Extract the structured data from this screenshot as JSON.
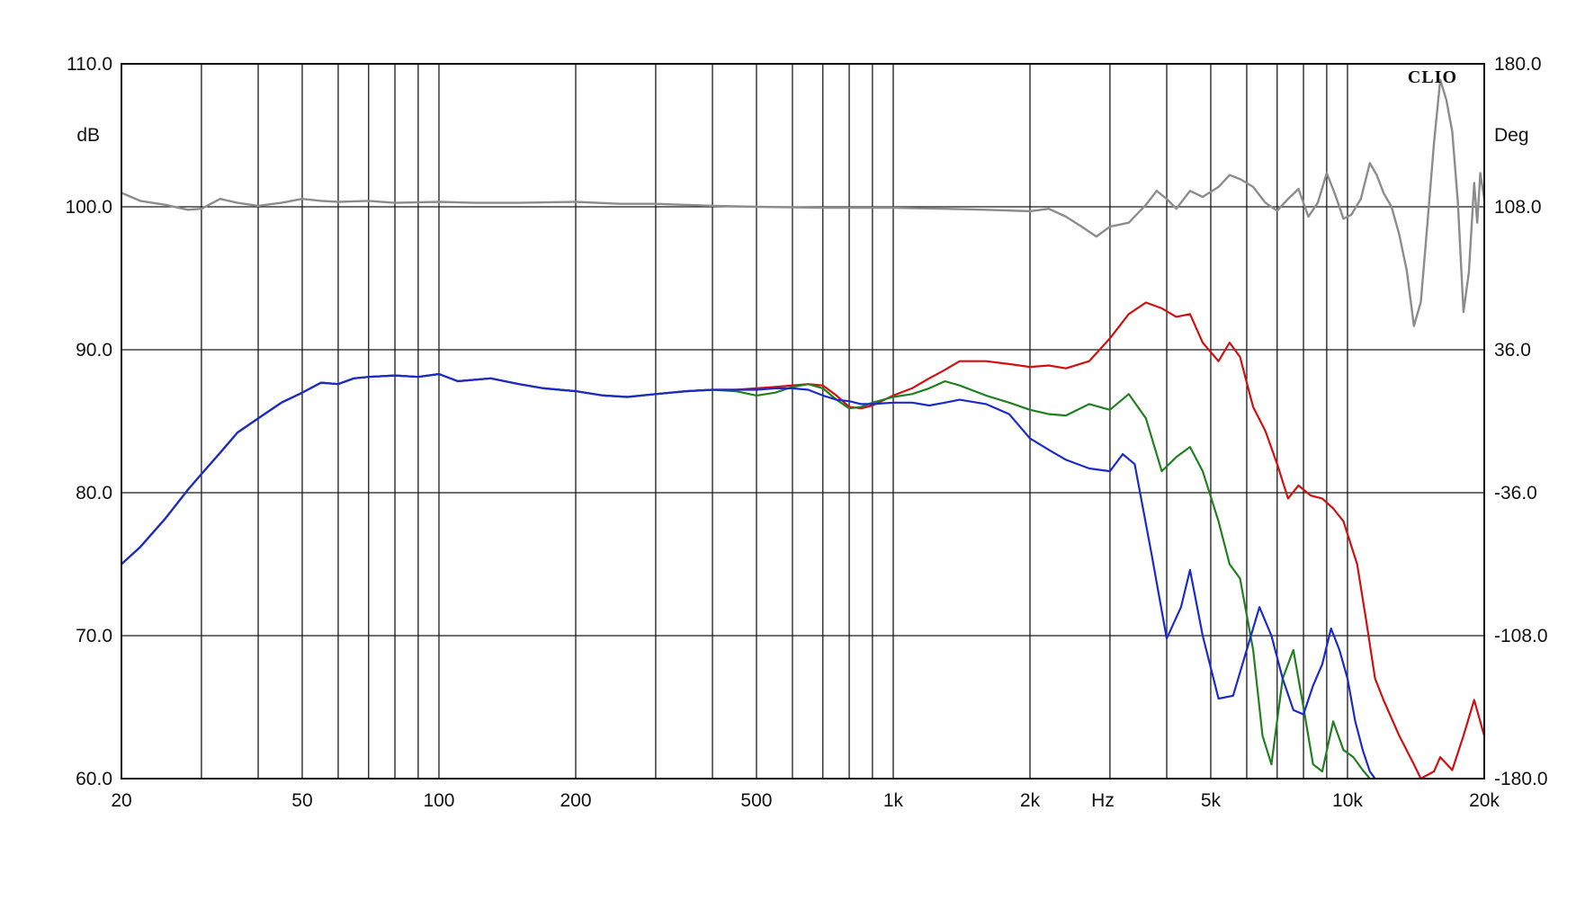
{
  "chart_data": {
    "type": "line",
    "brand": "CLIO",
    "xlabel": "Hz",
    "ylabel_left": "dB",
    "ylabel_right": "Deg",
    "x_scale": "log",
    "xlim": [
      20,
      20000
    ],
    "ylim_left": [
      60,
      110
    ],
    "ylim_right": [
      -180,
      180
    ],
    "grid": true,
    "x_ticks": [
      {
        "value": 20,
        "label": "20"
      },
      {
        "value": 50,
        "label": "50"
      },
      {
        "value": 100,
        "label": "100"
      },
      {
        "value": 200,
        "label": "200"
      },
      {
        "value": 500,
        "label": "500"
      },
      {
        "value": 1000,
        "label": "1k"
      },
      {
        "value": 2000,
        "label": "2k"
      },
      {
        "value": 5000,
        "label": "5k"
      },
      {
        "value": 10000,
        "label": "10k"
      },
      {
        "value": 20000,
        "label": "20k"
      }
    ],
    "y_ticks_left": [
      "110.0",
      "100.0",
      "90.0",
      "80.0",
      "70.0",
      "60.0"
    ],
    "y_ticks_right": [
      "180.0",
      "108.0",
      "36.0",
      "-36.0",
      "-108.0",
      "-180.0"
    ],
    "series": [
      {
        "color": "#d01010",
        "axis": "left",
        "points": [
          [
            20,
            75
          ],
          [
            22,
            76.2
          ],
          [
            25,
            78.2
          ],
          [
            28,
            80.2
          ],
          [
            30,
            81.3
          ],
          [
            33,
            82.8
          ],
          [
            36,
            84.2
          ],
          [
            40,
            85.2
          ],
          [
            45,
            86.3
          ],
          [
            50,
            87
          ],
          [
            55,
            87.7
          ],
          [
            60,
            87.6
          ],
          [
            65,
            88
          ],
          [
            70,
            88.1
          ],
          [
            80,
            88.2
          ],
          [
            90,
            88.1
          ],
          [
            100,
            88.3
          ],
          [
            110,
            87.8
          ],
          [
            130,
            88
          ],
          [
            150,
            87.6
          ],
          [
            170,
            87.3
          ],
          [
            200,
            87.1
          ],
          [
            230,
            86.8
          ],
          [
            260,
            86.7
          ],
          [
            300,
            86.9
          ],
          [
            350,
            87.1
          ],
          [
            400,
            87.2
          ],
          [
            450,
            87.2
          ],
          [
            500,
            87.3
          ],
          [
            550,
            87.4
          ],
          [
            600,
            87.5
          ],
          [
            650,
            87.6
          ],
          [
            700,
            87.5
          ],
          [
            750,
            86.8
          ],
          [
            800,
            86
          ],
          [
            850,
            85.9
          ],
          [
            900,
            86.1
          ],
          [
            1000,
            86.8
          ],
          [
            1100,
            87.3
          ],
          [
            1200,
            88
          ],
          [
            1300,
            88.6
          ],
          [
            1400,
            89.2
          ],
          [
            1600,
            89.2
          ],
          [
            1800,
            89
          ],
          [
            2000,
            88.8
          ],
          [
            2200,
            88.9
          ],
          [
            2400,
            88.7
          ],
          [
            2700,
            89.2
          ],
          [
            3000,
            90.8
          ],
          [
            3300,
            92.5
          ],
          [
            3600,
            93.3
          ],
          [
            3900,
            92.9
          ],
          [
            4200,
            92.3
          ],
          [
            4500,
            92.5
          ],
          [
            4800,
            90.5
          ],
          [
            5200,
            89.2
          ],
          [
            5500,
            90.5
          ],
          [
            5800,
            89.5
          ],
          [
            6200,
            86
          ],
          [
            6600,
            84.3
          ],
          [
            7000,
            82
          ],
          [
            7400,
            79.6
          ],
          [
            7800,
            80.5
          ],
          [
            8300,
            79.8
          ],
          [
            8800,
            79.6
          ],
          [
            9300,
            78.9
          ],
          [
            9800,
            78
          ],
          [
            10500,
            75
          ],
          [
            11000,
            71
          ],
          [
            11500,
            67
          ],
          [
            12000,
            65.5
          ],
          [
            13000,
            63
          ],
          [
            14000,
            61
          ],
          [
            14500,
            60
          ],
          [
            15500,
            60.5
          ],
          [
            16000,
            61.5
          ],
          [
            17000,
            60.6
          ],
          [
            18000,
            63
          ],
          [
            19000,
            65.5
          ],
          [
            20000,
            63
          ]
        ]
      },
      {
        "color": "#208020",
        "axis": "left",
        "points": [
          [
            20,
            75
          ],
          [
            22,
            76.2
          ],
          [
            25,
            78.2
          ],
          [
            28,
            80.2
          ],
          [
            30,
            81.3
          ],
          [
            33,
            82.8
          ],
          [
            36,
            84.2
          ],
          [
            40,
            85.2
          ],
          [
            45,
            86.3
          ],
          [
            50,
            87
          ],
          [
            55,
            87.7
          ],
          [
            60,
            87.6
          ],
          [
            65,
            88
          ],
          [
            70,
            88.1
          ],
          [
            80,
            88.2
          ],
          [
            90,
            88.1
          ],
          [
            100,
            88.3
          ],
          [
            110,
            87.8
          ],
          [
            130,
            88
          ],
          [
            150,
            87.6
          ],
          [
            170,
            87.3
          ],
          [
            200,
            87.1
          ],
          [
            230,
            86.8
          ],
          [
            260,
            86.7
          ],
          [
            300,
            86.9
          ],
          [
            350,
            87.1
          ],
          [
            400,
            87.2
          ],
          [
            450,
            87.1
          ],
          [
            500,
            86.8
          ],
          [
            550,
            87
          ],
          [
            600,
            87.4
          ],
          [
            650,
            87.6
          ],
          [
            700,
            87.3
          ],
          [
            750,
            86.5
          ],
          [
            800,
            85.9
          ],
          [
            850,
            86
          ],
          [
            900,
            86.3
          ],
          [
            1000,
            86.7
          ],
          [
            1100,
            86.9
          ],
          [
            1200,
            87.3
          ],
          [
            1300,
            87.8
          ],
          [
            1400,
            87.5
          ],
          [
            1600,
            86.8
          ],
          [
            1800,
            86.3
          ],
          [
            2000,
            85.8
          ],
          [
            2200,
            85.5
          ],
          [
            2400,
            85.4
          ],
          [
            2700,
            86.2
          ],
          [
            3000,
            85.8
          ],
          [
            3300,
            86.9
          ],
          [
            3600,
            85.2
          ],
          [
            3900,
            81.5
          ],
          [
            4200,
            82.5
          ],
          [
            4500,
            83.2
          ],
          [
            4800,
            81.5
          ],
          [
            5200,
            78
          ],
          [
            5500,
            75
          ],
          [
            5800,
            74
          ],
          [
            6200,
            69
          ],
          [
            6500,
            63
          ],
          [
            6800,
            61
          ],
          [
            7200,
            67
          ],
          [
            7600,
            69
          ],
          [
            8000,
            65
          ],
          [
            8400,
            61
          ],
          [
            8800,
            60.5
          ],
          [
            9300,
            64
          ],
          [
            9800,
            62
          ],
          [
            10300,
            61.5
          ],
          [
            10800,
            60.6
          ],
          [
            11200,
            60
          ]
        ]
      },
      {
        "color": "#1a2acc",
        "axis": "left",
        "points": [
          [
            20,
            75
          ],
          [
            22,
            76.2
          ],
          [
            25,
            78.2
          ],
          [
            28,
            80.2
          ],
          [
            30,
            81.3
          ],
          [
            33,
            82.8
          ],
          [
            36,
            84.2
          ],
          [
            40,
            85.2
          ],
          [
            45,
            86.3
          ],
          [
            50,
            87
          ],
          [
            55,
            87.7
          ],
          [
            60,
            87.6
          ],
          [
            65,
            88
          ],
          [
            70,
            88.1
          ],
          [
            80,
            88.2
          ],
          [
            90,
            88.1
          ],
          [
            100,
            88.3
          ],
          [
            110,
            87.8
          ],
          [
            130,
            88
          ],
          [
            150,
            87.6
          ],
          [
            170,
            87.3
          ],
          [
            200,
            87.1
          ],
          [
            230,
            86.8
          ],
          [
            260,
            86.7
          ],
          [
            300,
            86.9
          ],
          [
            350,
            87.1
          ],
          [
            400,
            87.2
          ],
          [
            450,
            87.2
          ],
          [
            500,
            87.2
          ],
          [
            550,
            87.3
          ],
          [
            600,
            87.3
          ],
          [
            650,
            87.2
          ],
          [
            700,
            86.8
          ],
          [
            750,
            86.5
          ],
          [
            800,
            86.4
          ],
          [
            850,
            86.2
          ],
          [
            900,
            86.2
          ],
          [
            1000,
            86.3
          ],
          [
            1100,
            86.3
          ],
          [
            1200,
            86.1
          ],
          [
            1300,
            86.3
          ],
          [
            1400,
            86.5
          ],
          [
            1600,
            86.2
          ],
          [
            1800,
            85.5
          ],
          [
            2000,
            83.8
          ],
          [
            2200,
            83
          ],
          [
            2400,
            82.3
          ],
          [
            2700,
            81.7
          ],
          [
            3000,
            81.5
          ],
          [
            3200,
            82.7
          ],
          [
            3400,
            82
          ],
          [
            3700,
            75.8
          ],
          [
            4000,
            69.8
          ],
          [
            4300,
            72
          ],
          [
            4500,
            74.6
          ],
          [
            4800,
            70
          ],
          [
            5200,
            65.6
          ],
          [
            5600,
            65.8
          ],
          [
            6000,
            69
          ],
          [
            6400,
            72
          ],
          [
            6800,
            70
          ],
          [
            7200,
            67
          ],
          [
            7600,
            64.8
          ],
          [
            8000,
            64.5
          ],
          [
            8400,
            66.5
          ],
          [
            8800,
            68
          ],
          [
            9200,
            70.5
          ],
          [
            9600,
            69
          ],
          [
            10000,
            67
          ],
          [
            10400,
            64
          ],
          [
            10800,
            62
          ],
          [
            11200,
            60.5
          ],
          [
            11500,
            60
          ]
        ]
      },
      {
        "color": "#8c8c8c",
        "axis": "right",
        "points": [
          [
            20,
            115
          ],
          [
            22,
            111
          ],
          [
            25,
            109
          ],
          [
            28,
            106.5
          ],
          [
            30,
            107
          ],
          [
            33,
            112
          ],
          [
            36,
            110
          ],
          [
            40,
            108.5
          ],
          [
            45,
            110
          ],
          [
            50,
            112
          ],
          [
            55,
            111
          ],
          [
            60,
            110.5
          ],
          [
            70,
            111
          ],
          [
            80,
            110
          ],
          [
            100,
            110.5
          ],
          [
            120,
            110
          ],
          [
            150,
            110
          ],
          [
            200,
            110.5
          ],
          [
            250,
            109.5
          ],
          [
            300,
            109.5
          ],
          [
            400,
            108.5
          ],
          [
            500,
            108
          ],
          [
            700,
            107.5
          ],
          [
            1000,
            107.5
          ],
          [
            1300,
            107
          ],
          [
            1600,
            106.5
          ],
          [
            2000,
            105.8
          ],
          [
            2200,
            107
          ],
          [
            2400,
            103
          ],
          [
            2600,
            98
          ],
          [
            2800,
            93
          ],
          [
            3000,
            98
          ],
          [
            3300,
            100
          ],
          [
            3600,
            109
          ],
          [
            3800,
            116
          ],
          [
            4000,
            112
          ],
          [
            4200,
            107
          ],
          [
            4500,
            116
          ],
          [
            4800,
            113
          ],
          [
            5200,
            118
          ],
          [
            5500,
            124
          ],
          [
            5800,
            122
          ],
          [
            6200,
            118
          ],
          [
            6600,
            110
          ],
          [
            7000,
            106
          ],
          [
            7400,
            112
          ],
          [
            7800,
            117
          ],
          [
            8200,
            103
          ],
          [
            8600,
            110
          ],
          [
            9000,
            125
          ],
          [
            9400,
            114
          ],
          [
            9800,
            102
          ],
          [
            10200,
            104
          ],
          [
            10700,
            112
          ],
          [
            11200,
            130
          ],
          [
            11600,
            124
          ],
          [
            12000,
            115
          ],
          [
            12500,
            108
          ],
          [
            13000,
            94
          ],
          [
            13500,
            76
          ],
          [
            14000,
            48
          ],
          [
            14500,
            60
          ],
          [
            15000,
            100
          ],
          [
            15500,
            140
          ],
          [
            16000,
            172
          ],
          [
            16500,
            162
          ],
          [
            17000,
            146
          ],
          [
            17500,
            110
          ],
          [
            18000,
            55
          ],
          [
            18500,
            75
          ],
          [
            19000,
            120
          ],
          [
            19300,
            100
          ],
          [
            19600,
            125
          ],
          [
            20000,
            112
          ]
        ]
      }
    ]
  }
}
